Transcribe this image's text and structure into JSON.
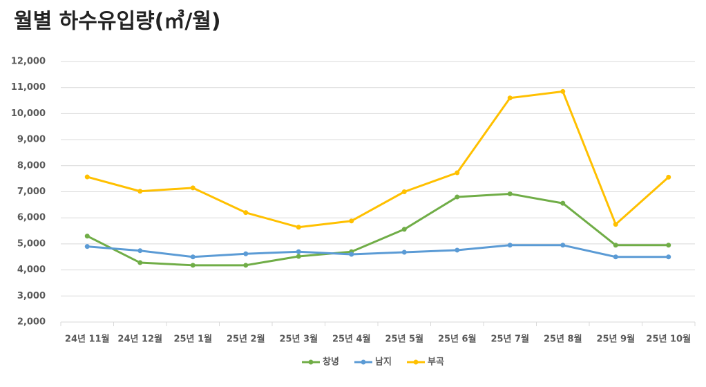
{
  "chart_data": {
    "type": "line",
    "title": "월별 하수유입량(㎥/월)",
    "categories": [
      "24년 11월",
      "24년 12월",
      "25년 1월",
      "25년 2월",
      "25년 3월",
      "25년 4월",
      "25년 5월",
      "25년 6월",
      "25년 7월",
      "25년 8월",
      "25년 9월",
      "25년 10월"
    ],
    "series": [
      {
        "name": "창녕",
        "color": "#70ad47",
        "values": [
          5300,
          4280,
          4180,
          4180,
          4520,
          4700,
          5560,
          6800,
          6920,
          6560,
          4950,
          4950
        ]
      },
      {
        "name": "남지",
        "color": "#5b9bd5",
        "values": [
          4900,
          4740,
          4500,
          4620,
          4700,
          4600,
          4680,
          4760,
          4950,
          4950,
          4500,
          4500
        ]
      },
      {
        "name": "부곡",
        "color": "#ffc000",
        "values": [
          7570,
          7020,
          7150,
          6200,
          5640,
          5880,
          7000,
          7730,
          10600,
          10850,
          5750,
          7560
        ]
      }
    ],
    "ylim": [
      2000,
      12000
    ],
    "yticks": [
      {
        "value": 2000,
        "label": "2,000"
      },
      {
        "value": 3000,
        "label": "3,000"
      },
      {
        "value": 4000,
        "label": "4,000"
      },
      {
        "value": 5000,
        "label": "5,000"
      },
      {
        "value": 6000,
        "label": "6,000"
      },
      {
        "value": 7000,
        "label": "7,000"
      },
      {
        "value": 8000,
        "label": "8,000"
      },
      {
        "value": 9000,
        "label": "9,000"
      },
      {
        "value": 10000,
        "label": "10,000"
      },
      {
        "value": 11000,
        "label": "11,000"
      },
      {
        "value": 12000,
        "label": "12,000"
      }
    ],
    "grid": true,
    "legend": "bottom"
  }
}
